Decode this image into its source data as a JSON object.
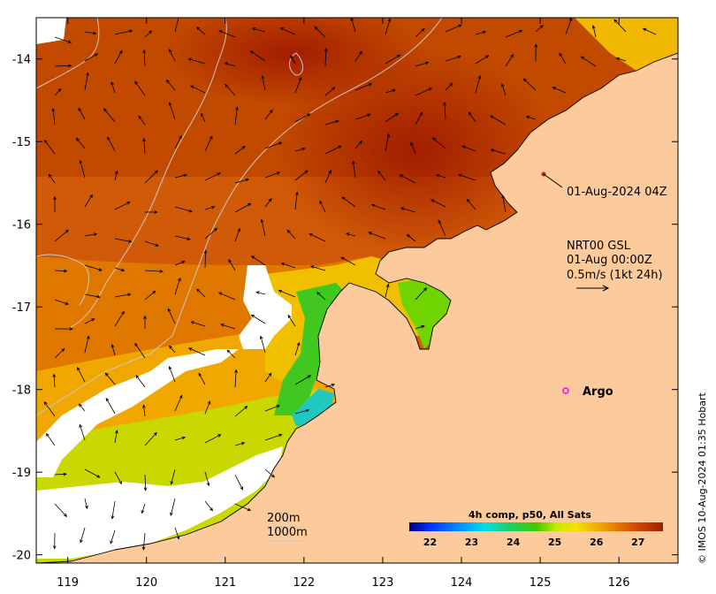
{
  "colors": {
    "land": "#fdcb9b",
    "coast": "#000000",
    "cloud": "#ffffff",
    "sst_hot": "#a92000",
    "sst_warm": "#d65300",
    "sst_mid": "#eb9a00",
    "sst_yellow": "#f2d800",
    "sst_green": "#24c400",
    "sst_cyan": "#12c8d0",
    "bathy": "#c8c8c8",
    "argo": "#ff00ff"
  },
  "axes": {
    "x_ticks": [
      "119",
      "120",
      "121",
      "122",
      "123",
      "124",
      "125",
      "126"
    ],
    "y_ticks": [
      "-14",
      "-15",
      "-16",
      "-17",
      "-18",
      "-19",
      "-20"
    ]
  },
  "annotations": {
    "timestamp_label": "01-Aug-2024 04Z",
    "current_source": "NRT00 GSL",
    "current_time": "01-Aug 00:00Z",
    "current_scale": "0.5m/s (1kt 24h)",
    "argo_label": "Argo",
    "bathy_200": "200m",
    "bathy_1000": "1000m"
  },
  "colorbar": {
    "title": "4h comp, p50, All Sats",
    "ticks": [
      "22",
      "23",
      "24",
      "25",
      "26",
      "27"
    ],
    "colors": [
      "#00007f",
      "#0040ff",
      "#00c0ff",
      "#30e0a0",
      "#30c800",
      "#9ee000",
      "#f5e600",
      "#f5b000",
      "#e87800",
      "#d04800",
      "#a01e00"
    ]
  },
  "credit": "© IMOS 10-Aug-2024 01:35 Hobart",
  "chart_data": {
    "type": "heatmap",
    "title": "",
    "xlabel": "",
    "ylabel": "",
    "xlim": [
      118.6,
      126.75
    ],
    "ylim": [
      -20.1,
      -13.5
    ],
    "colorbar_range": [
      21.5,
      27.6
    ],
    "colorbar_ticks": [
      22,
      23,
      24,
      25,
      26,
      27
    ],
    "argo_float": {
      "lon": 125.25,
      "lat": -18.0
    }
  }
}
